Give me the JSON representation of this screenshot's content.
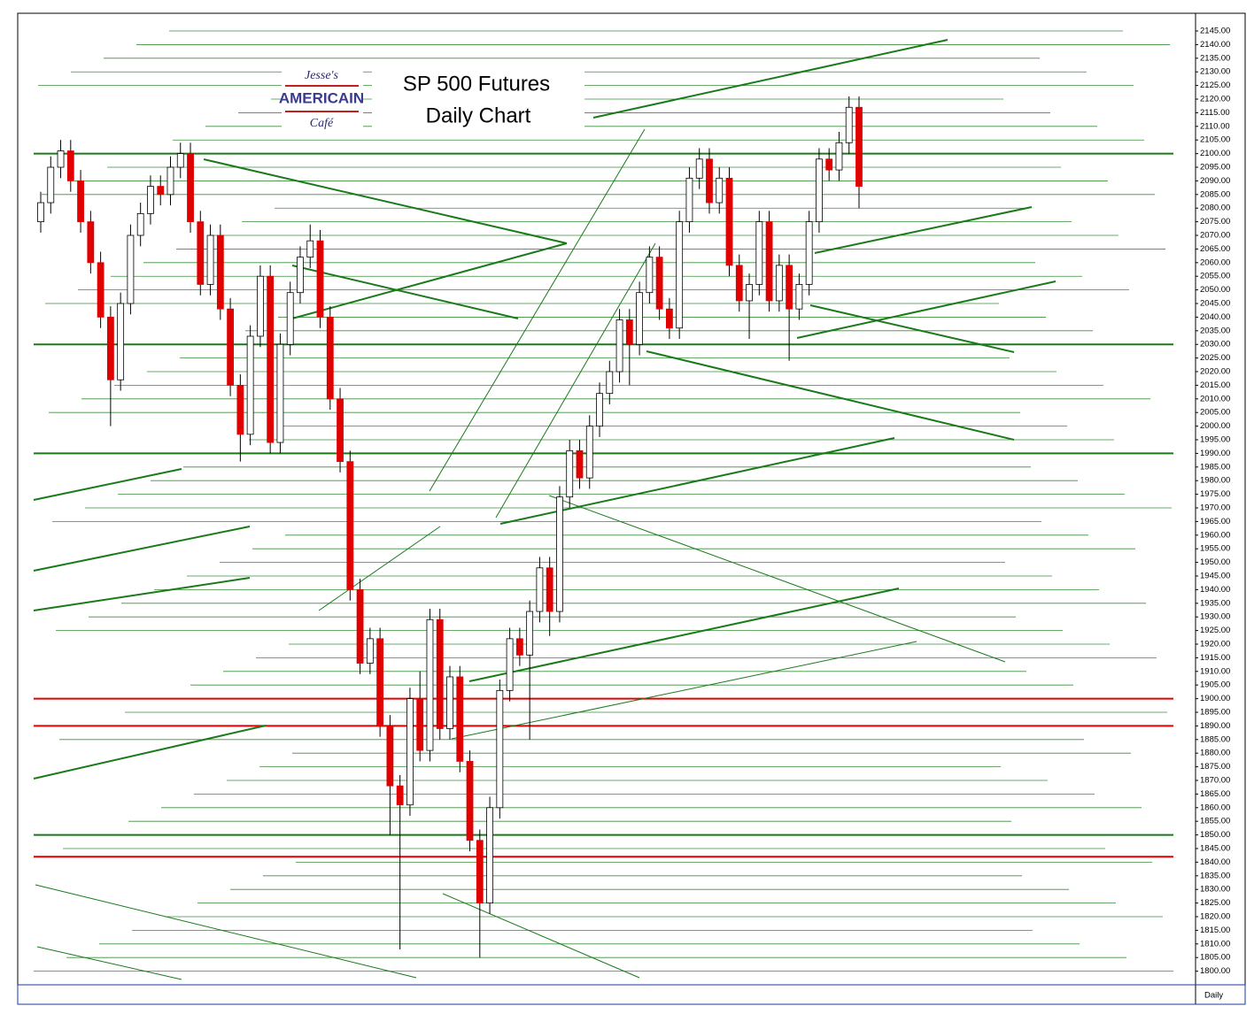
{
  "chart_data": {
    "type": "candlestick",
    "title": "SP 500 Futures",
    "subtitle": "Daily Chart",
    "logo": {
      "top": "Jesse's",
      "middle": "AMERICAIN",
      "bottom": "Café"
    },
    "period_label": "Daily",
    "up_color": "#ffffff",
    "down_color": "#e00000",
    "grid": true,
    "grid_color": "#1a7a1a",
    "open": [
      2075,
      2082,
      2095,
      2101,
      2090,
      2075,
      2060,
      2040,
      2017,
      2045,
      2070,
      2078,
      2088,
      2085,
      2095,
      2100,
      2075,
      2052,
      2070,
      2043,
      2015,
      1997,
      2033,
      2055,
      1994,
      2030,
      2049,
      2062,
      2068,
      2040,
      2010,
      1987,
      1940,
      1913,
      1922,
      1890,
      1868,
      1861,
      1900,
      1881,
      1929,
      1889,
      1908,
      1877,
      1848,
      1825,
      1860,
      1903,
      1922,
      1916,
      1932,
      1948,
      1932,
      1974,
      1991,
      1981,
      2000,
      2012,
      2020,
      2039,
      2030,
      2049,
      2062,
      2043,
      2036,
      2075,
      2091,
      2098,
      2082,
      2091,
      2059,
      2046,
      2052,
      2075,
      2046,
      2059,
      2043,
      2052,
      2075,
      2098,
      2094,
      2104,
      2117
    ],
    "high": [
      2086,
      2099,
      2105,
      2105,
      2094,
      2079,
      2064,
      2044,
      2049,
      2074,
      2082,
      2092,
      2092,
      2099,
      2104,
      2104,
      2079,
      2074,
      2074,
      2047,
      2019,
      2037,
      2059,
      2059,
      2034,
      2053,
      2066,
      2074,
      2072,
      2044,
      2014,
      1991,
      1944,
      1926,
      1926,
      1894,
      1872,
      1904,
      1910,
      1933,
      1933,
      1912,
      1912,
      1881,
      1852,
      1864,
      1907,
      1926,
      1926,
      1936,
      1952,
      1952,
      1978,
      1995,
      1995,
      2004,
      2016,
      2024,
      2043,
      2043,
      2053,
      2066,
      2066,
      2047,
      2079,
      2095,
      2102,
      2102,
      2095,
      2095,
      2063,
      2056,
      2079,
      2079,
      2063,
      2063,
      2056,
      2079,
      2102,
      2102,
      2108,
      2121,
      2121
    ],
    "low": [
      2071,
      2078,
      2091,
      2086,
      2071,
      2056,
      2036,
      2000,
      2013,
      2041,
      2066,
      2074,
      2081,
      2081,
      2091,
      2071,
      2048,
      2048,
      2039,
      2011,
      1987,
      1993,
      2029,
      1990,
      1990,
      2026,
      2045,
      2058,
      2036,
      2006,
      1983,
      1936,
      1909,
      1909,
      1886,
      1850,
      1808,
      1857,
      1877,
      1877,
      1885,
      1885,
      1873,
      1844,
      1805,
      1821,
      1856,
      1899,
      1912,
      1885,
      1928,
      1923,
      1928,
      1970,
      1977,
      1977,
      1996,
      2008,
      2016,
      2015,
      2026,
      2045,
      2039,
      2032,
      2032,
      2071,
      2087,
      2078,
      2078,
      2055,
      2042,
      2032,
      2048,
      2042,
      2042,
      2024,
      2039,
      2048,
      2071,
      2090,
      2090,
      2100,
      2080
    ],
    "close": [
      2082,
      2095,
      2101,
      2090,
      2075,
      2060,
      2040,
      2017,
      2045,
      2070,
      2078,
      2088,
      2085,
      2095,
      2100,
      2075,
      2052,
      2070,
      2043,
      2015,
      1997,
      2033,
      2055,
      1994,
      2030,
      2049,
      2062,
      2068,
      2040,
      2010,
      1987,
      1940,
      1913,
      1922,
      1890,
      1868,
      1861,
      1900,
      1881,
      1929,
      1889,
      1908,
      1877,
      1848,
      1825,
      1860,
      1903,
      1922,
      1916,
      1932,
      1948,
      1932,
      1974,
      1991,
      1981,
      2000,
      2012,
      2020,
      2039,
      2030,
      2049,
      2062,
      2043,
      2036,
      2075,
      2091,
      2098,
      2082,
      2091,
      2059,
      2046,
      2052,
      2075,
      2046,
      2059,
      2043,
      2052,
      2075,
      2098,
      2094,
      2104,
      2117,
      2088
    ],
    "levels": [
      {
        "color": "#1a7a1a",
        "values": [
          2100,
          2030,
          1990,
          1850
        ]
      },
      {
        "color": "#e00000",
        "values": [
          1900,
          1890,
          1842
        ]
      }
    ],
    "ylim": [
      1795,
      2151.5
    ],
    "yticks": [
      {
        "value": 1800,
        "label": "1800.00"
      },
      {
        "value": 1805,
        "label": "1805.00"
      },
      {
        "value": 1810,
        "label": "1810.00"
      },
      {
        "value": 1815,
        "label": "1815.00"
      },
      {
        "value": 1820,
        "label": "1820.00"
      },
      {
        "value": 1825,
        "label": "1825.00"
      },
      {
        "value": 1830,
        "label": "1830.00"
      },
      {
        "value": 1835,
        "label": "1835.00"
      },
      {
        "value": 1840,
        "label": "1840.00"
      },
      {
        "value": 1845,
        "label": "1845.00"
      },
      {
        "value": 1850,
        "label": "1850.00"
      },
      {
        "value": 1855,
        "label": "1855.00"
      },
      {
        "value": 1860,
        "label": "1860.00"
      },
      {
        "value": 1865,
        "label": "1865.00"
      },
      {
        "value": 1870,
        "label": "1870.00"
      },
      {
        "value": 1875,
        "label": "1875.00"
      },
      {
        "value": 1880,
        "label": "1880.00"
      },
      {
        "value": 1885,
        "label": "1885.00"
      },
      {
        "value": 1890,
        "label": "1890.00"
      },
      {
        "value": 1895,
        "label": "1895.00"
      },
      {
        "value": 1900,
        "label": "1900.00"
      },
      {
        "value": 1905,
        "label": "1905.00"
      },
      {
        "value": 1910,
        "label": "1910.00"
      },
      {
        "value": 1915,
        "label": "1915.00"
      },
      {
        "value": 1920,
        "label": "1920.00"
      },
      {
        "value": 1925,
        "label": "1925.00"
      },
      {
        "value": 1930,
        "label": "1930.00"
      },
      {
        "value": 1935,
        "label": "1935.00"
      },
      {
        "value": 1940,
        "label": "1940.00"
      },
      {
        "value": 1945,
        "label": "1945.00"
      },
      {
        "value": 1950,
        "label": "1950.00"
      },
      {
        "value": 1955,
        "label": "1955.00"
      },
      {
        "value": 1960,
        "label": "1960.00"
      },
      {
        "value": 1965,
        "label": "1965.00"
      },
      {
        "value": 1970,
        "label": "1970.00"
      },
      {
        "value": 1975,
        "label": "1975.00"
      },
      {
        "value": 1980,
        "label": "1980.00"
      },
      {
        "value": 1985,
        "label": "1985.00"
      },
      {
        "value": 1990,
        "label": "1990.00"
      },
      {
        "value": 1995,
        "label": "1995.00"
      },
      {
        "value": 2000,
        "label": "2000.00"
      },
      {
        "value": 2005,
        "label": "2005.00"
      },
      {
        "value": 2010,
        "label": "2010.00"
      },
      {
        "value": 2015,
        "label": "2015.00"
      },
      {
        "value": 2020,
        "label": "2020.00"
      },
      {
        "value": 2025,
        "label": "2025.00"
      },
      {
        "value": 2030,
        "label": "2030.00"
      },
      {
        "value": 2035,
        "label": "2035.00"
      },
      {
        "value": 2040,
        "label": "2040.00"
      },
      {
        "value": 2045,
        "label": "2045.00"
      },
      {
        "value": 2050,
        "label": "2050.00"
      },
      {
        "value": 2055,
        "label": "2055.00"
      },
      {
        "value": 2060,
        "label": "2060.00"
      },
      {
        "value": 2065,
        "label": "2065.00"
      },
      {
        "value": 2070,
        "label": "2070.00"
      },
      {
        "value": 2075,
        "label": "2075.00"
      },
      {
        "value": 2080,
        "label": "2080.00"
      },
      {
        "value": 2085,
        "label": "2085.00"
      },
      {
        "value": 2090,
        "label": "2090.00"
      },
      {
        "value": 2095,
        "label": "2095.00"
      },
      {
        "value": 2100,
        "label": "2100.00"
      },
      {
        "value": 2105,
        "label": "2105.00"
      },
      {
        "value": 2110,
        "label": "2110.00"
      },
      {
        "value": 2115,
        "label": "2115.00"
      },
      {
        "value": 2120,
        "label": "2120.00"
      },
      {
        "value": 2125,
        "label": "2125.00"
      },
      {
        "value": 2130,
        "label": "2130.00"
      },
      {
        "value": 2135,
        "label": "2135.00"
      },
      {
        "value": 2140,
        "label": "2140.00"
      },
      {
        "value": 2145,
        "label": "2145.00"
      }
    ]
  }
}
